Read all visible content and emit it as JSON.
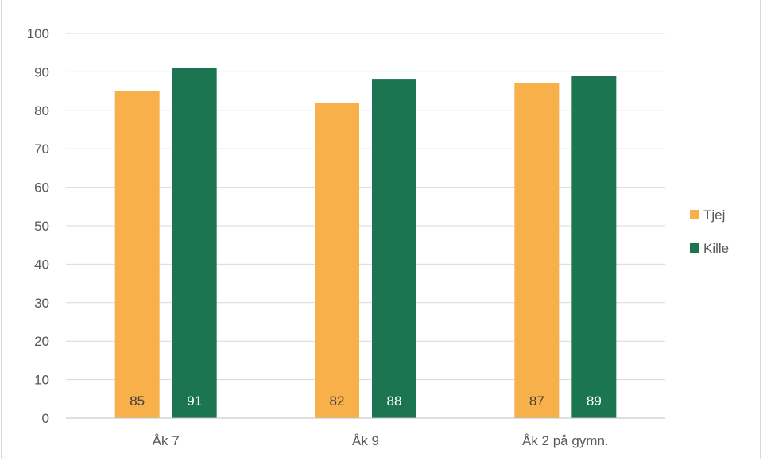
{
  "chart_data": {
    "type": "bar",
    "title": "",
    "xlabel": "",
    "ylabel": "",
    "categories": [
      "Åk 7",
      "Åk 9",
      "Åk 2 på gymn."
    ],
    "series": [
      {
        "name": "Tjej",
        "color": "#F7B04A",
        "values": [
          85,
          82,
          87
        ]
      },
      {
        "name": "Kille",
        "color": "#1B7551",
        "values": [
          91,
          88,
          89
        ]
      }
    ],
    "ylim": [
      0,
      100
    ],
    "yticks": [
      0,
      10,
      20,
      30,
      40,
      50,
      60,
      70,
      80,
      90,
      100
    ],
    "grid": true,
    "legend": "right",
    "data_labels": "inside-base"
  }
}
